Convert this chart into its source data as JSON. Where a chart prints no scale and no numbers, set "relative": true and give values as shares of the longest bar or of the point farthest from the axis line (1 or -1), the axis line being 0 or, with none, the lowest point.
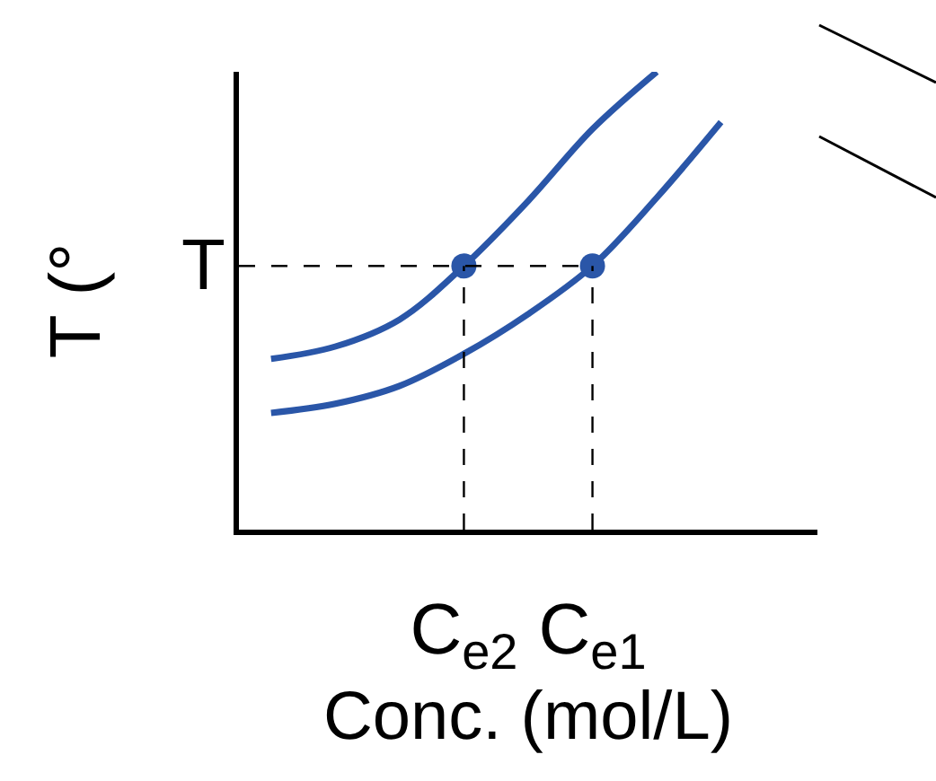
{
  "chart_data": {
    "type": "line",
    "relative": true,
    "xlabel": "Conc. (mol/L)",
    "ylabel": "T (°",
    "grid": false,
    "marker": "none",
    "line_style": "solid",
    "categories": [
      null,
      null,
      null,
      "C$_{e2}$",
      null,
      "C$_{e1}$",
      null,
      null,
      null
    ],
    "series": [
      {
        "color": "#2a56a8",
        "values": [
          0.373,
          0.4,
          0.459,
          0.576,
          0.718,
          0.875,
          1.0,
          null,
          null
        ]
      },
      {
        "color": "#2a56a8",
        "values": [
          0.255,
          0.275,
          0.314,
          0.384,
          0.471,
          0.576,
          0.725,
          0.89,
          null
        ]
      },
      {
        "type": "scatter",
        "marker": "circle",
        "color": "#2a56a8",
        "values": [
          null,
          null,
          null,
          0.576,
          null,
          0.576,
          null,
          null,
          null
        ]
      }
    ],
    "ref_lines": [
      {
        "axis": "y",
        "value": 0.576,
        "label": "T",
        "line_style": "dashed",
        "color": "#000000"
      }
    ]
  }
}
